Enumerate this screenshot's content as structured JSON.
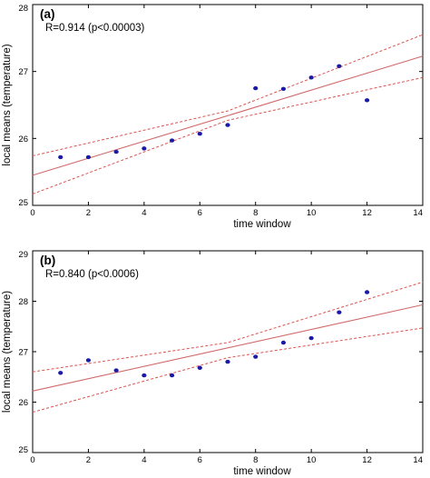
{
  "chart_data": [
    {
      "type": "scatter",
      "panel_label": "(a)",
      "annotation": "R=0.914 (p<0.00003)",
      "xlabel": "time window",
      "ylabel": "local means (temperature)",
      "xlim": [
        0,
        14
      ],
      "ylim": [
        25,
        28
      ],
      "xticks": [
        0,
        2,
        4,
        6,
        8,
        10,
        12,
        14
      ],
      "xtick_labels": [
        "0",
        "2",
        "4",
        "6",
        "8",
        "10",
        "12",
        "14"
      ],
      "yticks": [
        25,
        26,
        27,
        28
      ],
      "ytick_labels": [
        "25",
        "26",
        "27",
        "28"
      ],
      "points": {
        "x": [
          1,
          2,
          3,
          4,
          5,
          6,
          7,
          8,
          9,
          10,
          11,
          12
        ],
        "y": [
          25.72,
          25.72,
          25.8,
          25.85,
          25.97,
          26.07,
          26.2,
          26.75,
          26.74,
          26.91,
          27.08,
          26.57
        ]
      },
      "fit_line": {
        "x": [
          0,
          14
        ],
        "y": [
          25.45,
          27.23
        ]
      },
      "confidence_upper": {
        "x": [
          0,
          7,
          14
        ],
        "y": [
          25.74,
          26.41,
          27.55
        ]
      },
      "confidence_lower": {
        "x": [
          0,
          7,
          14
        ],
        "y": [
          25.17,
          26.27,
          26.91
        ]
      },
      "grid": false
    },
    {
      "type": "scatter",
      "panel_label": "(b)",
      "annotation": "R=0.840 (p<0.0006)",
      "xlabel": "time window",
      "ylabel": "local means (temperature)",
      "xlim": [
        0,
        14
      ],
      "ylim": [
        25,
        29
      ],
      "xticks": [
        0,
        2,
        4,
        6,
        8,
        10,
        12,
        14
      ],
      "xtick_labels": [
        "0",
        "2",
        "4",
        "6",
        "8",
        "10",
        "12",
        "14"
      ],
      "yticks": [
        25,
        26,
        27,
        28,
        29
      ],
      "ytick_labels": [
        "25",
        "26",
        "27",
        "28",
        "29"
      ],
      "points": {
        "x": [
          1,
          2,
          3,
          4,
          5,
          6,
          7,
          8,
          9,
          10,
          11,
          12
        ],
        "y": [
          26.58,
          26.83,
          26.63,
          26.53,
          26.53,
          26.68,
          26.8,
          26.9,
          27.18,
          27.27,
          27.78,
          28.18
        ]
      },
      "fit_line": {
        "x": [
          0,
          14
        ],
        "y": [
          26.22,
          27.93
        ]
      },
      "confidence_upper": {
        "x": [
          0,
          7,
          14
        ],
        "y": [
          26.6,
          27.18,
          28.38
        ]
      },
      "confidence_lower": {
        "x": [
          0,
          7,
          14
        ],
        "y": [
          25.8,
          26.88,
          27.47
        ]
      },
      "grid": false
    }
  ]
}
